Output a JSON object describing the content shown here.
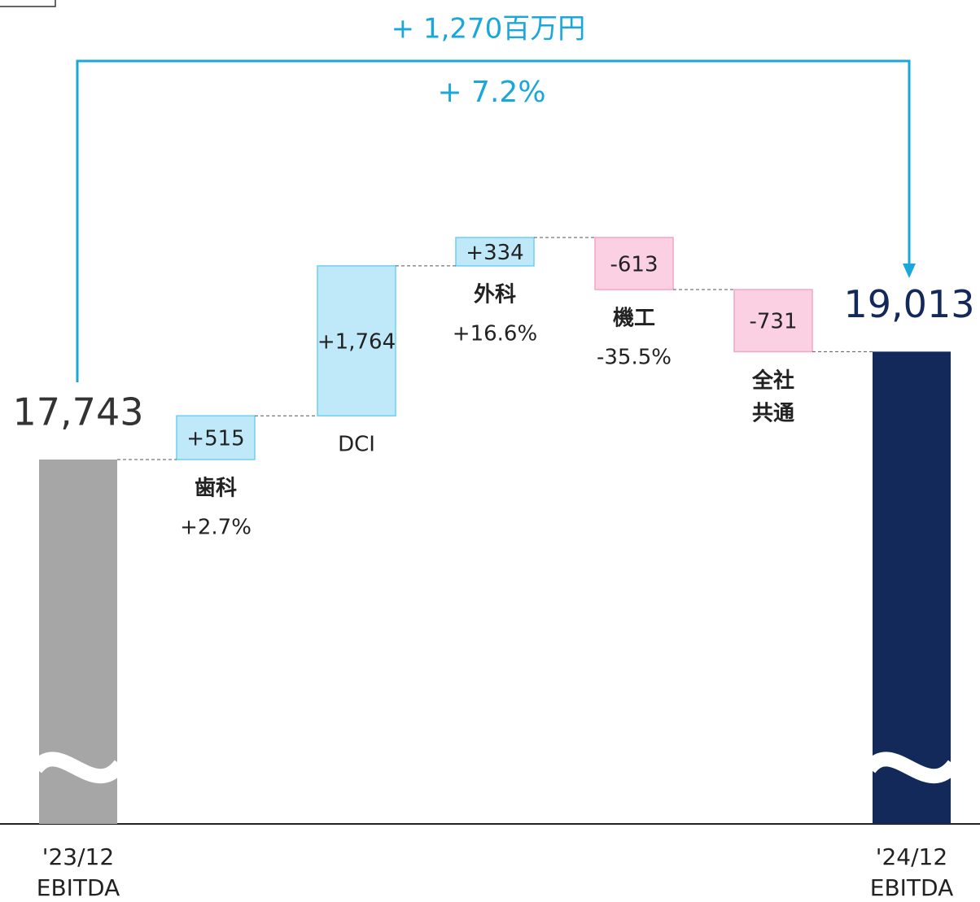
{
  "chart_data": {
    "type": "waterfall",
    "annotations": [
      "+ 1,270百万円",
      "+ 7.2%"
    ],
    "categories": [
      "'23/12\nEBITDA",
      "歯科",
      "DCI",
      "外科",
      "機工",
      "全社\n共通",
      "'24/12\nEBITDA"
    ],
    "values": [
      17743,
      515,
      1764,
      334,
      -613,
      -731,
      19013
    ],
    "value_labels": [
      "17,743",
      "+515",
      "+1,764",
      "+334",
      "-613",
      "-731",
      "19,013"
    ],
    "changes": [
      null,
      "+2.7%",
      null,
      "+16.6%",
      "-35.5%",
      null,
      null
    ],
    "start_color": "#a6a6a6",
    "end_color": "#12295a",
    "increase_color": "#bfe9f9",
    "decrease_color": "#fbd0e3",
    "annotation_color": "#1aa7dc"
  }
}
